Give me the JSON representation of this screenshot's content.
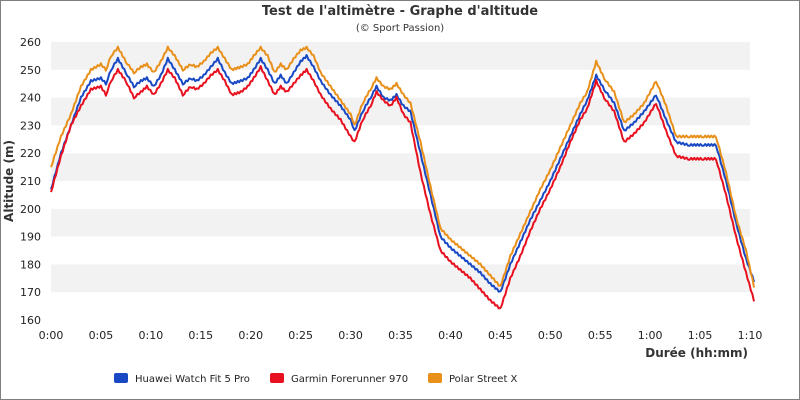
{
  "chart_data": {
    "type": "line",
    "title": "Test de l'altimètre - Graphe d'altitude",
    "subtitle": "(© Sport Passion)",
    "xlabel": "Durée (hh:mm)",
    "ylabel": "Altitude (m)",
    "xlim": [
      0,
      70
    ],
    "ylim": [
      160,
      260
    ],
    "x_ticks": [
      "0:00",
      "0:05",
      "0:10",
      "0:15",
      "0:20",
      "0:25",
      "0:30",
      "0:35",
      "0:40",
      "0:45",
      "0:50",
      "0:55",
      "1:00",
      "1:05",
      "1:10"
    ],
    "y_ticks": [
      160,
      170,
      180,
      190,
      200,
      210,
      220,
      230,
      240,
      250,
      260
    ],
    "grid": "horizontal-bands",
    "legend_position": "bottom",
    "series": [
      {
        "name": "Huawei Watch Fit 5 Pro",
        "color": "#1848c4",
        "points": [
          [
            0,
            207
          ],
          [
            1,
            220
          ],
          [
            2,
            230
          ],
          [
            3,
            240
          ],
          [
            4,
            246
          ],
          [
            5,
            247
          ],
          [
            5.5,
            245
          ],
          [
            6,
            250
          ],
          [
            6.7,
            254
          ],
          [
            7.5,
            249
          ],
          [
            8.3,
            244
          ],
          [
            9,
            246
          ],
          [
            9.6,
            247
          ],
          [
            10.3,
            244
          ],
          [
            11,
            248
          ],
          [
            11.7,
            254
          ],
          [
            12.4,
            250
          ],
          [
            13.2,
            245
          ],
          [
            14,
            247
          ],
          [
            14.6,
            246
          ],
          [
            15.3,
            248
          ],
          [
            16,
            251
          ],
          [
            16.7,
            254
          ],
          [
            17.4,
            249
          ],
          [
            18.1,
            245
          ],
          [
            19,
            246
          ],
          [
            19.7,
            247
          ],
          [
            20.3,
            250
          ],
          [
            21,
            254
          ],
          [
            21.7,
            250
          ],
          [
            22.4,
            245
          ],
          [
            23,
            248
          ],
          [
            23.6,
            245
          ],
          [
            24.3,
            249
          ],
          [
            25,
            253
          ],
          [
            25.6,
            255
          ],
          [
            26.3,
            251
          ],
          [
            27,
            246
          ],
          [
            28,
            241
          ],
          [
            29,
            237
          ],
          [
            30,
            232
          ],
          [
            30.4,
            228
          ],
          [
            31.2,
            235
          ],
          [
            32,
            240
          ],
          [
            32.6,
            244
          ],
          [
            33.3,
            240
          ],
          [
            34,
            239
          ],
          [
            34.6,
            241
          ],
          [
            35.3,
            237
          ],
          [
            36,
            235
          ],
          [
            37,
            220
          ],
          [
            38,
            205
          ],
          [
            39,
            190
          ],
          [
            40,
            186
          ],
          [
            41,
            183
          ],
          [
            42,
            180
          ],
          [
            43,
            177
          ],
          [
            44,
            173
          ],
          [
            45,
            170
          ],
          [
            46,
            180
          ],
          [
            47,
            188
          ],
          [
            48,
            196
          ],
          [
            49,
            203
          ],
          [
            50,
            210
          ],
          [
            51,
            218
          ],
          [
            52,
            226
          ],
          [
            53,
            234
          ],
          [
            53.7,
            239
          ],
          [
            54.6,
            248
          ],
          [
            55.4,
            243
          ],
          [
            56.4,
            238
          ],
          [
            57.4,
            228
          ],
          [
            58.4,
            231
          ],
          [
            59.4,
            235
          ],
          [
            60.6,
            241
          ],
          [
            61.6,
            232
          ],
          [
            62.6,
            224
          ],
          [
            63.8,
            223
          ],
          [
            65.2,
            223
          ],
          [
            66.6,
            223
          ],
          [
            67.6,
            210
          ],
          [
            68.6,
            195
          ],
          [
            69.6,
            182
          ],
          [
            70.4,
            174
          ]
        ]
      },
      {
        "name": "Garmin Forerunner 970",
        "color": "#e8101e",
        "points": [
          [
            0,
            206
          ],
          [
            1,
            219
          ],
          [
            2,
            230
          ],
          [
            3,
            237
          ],
          [
            4,
            243
          ],
          [
            5,
            244
          ],
          [
            5.5,
            241
          ],
          [
            6,
            246
          ],
          [
            6.7,
            250
          ],
          [
            7.5,
            246
          ],
          [
            8.3,
            240
          ],
          [
            9,
            242
          ],
          [
            9.6,
            244
          ],
          [
            10.3,
            241
          ],
          [
            11,
            245
          ],
          [
            11.7,
            250
          ],
          [
            12.4,
            247
          ],
          [
            13.2,
            241
          ],
          [
            14,
            244
          ],
          [
            14.6,
            243
          ],
          [
            15.3,
            245
          ],
          [
            16,
            248
          ],
          [
            16.7,
            250
          ],
          [
            17.4,
            246
          ],
          [
            18.1,
            241
          ],
          [
            19,
            242
          ],
          [
            19.7,
            244
          ],
          [
            20.3,
            247
          ],
          [
            21,
            251
          ],
          [
            21.7,
            246
          ],
          [
            22.4,
            241
          ],
          [
            23,
            244
          ],
          [
            23.6,
            242
          ],
          [
            24.3,
            245
          ],
          [
            25,
            248
          ],
          [
            25.6,
            250
          ],
          [
            26.3,
            246
          ],
          [
            27,
            241
          ],
          [
            28,
            236
          ],
          [
            29,
            232
          ],
          [
            30,
            226
          ],
          [
            30.4,
            224
          ],
          [
            31.2,
            232
          ],
          [
            32,
            237
          ],
          [
            32.6,
            242
          ],
          [
            33.3,
            239
          ],
          [
            34,
            237
          ],
          [
            34.6,
            240
          ],
          [
            35.3,
            234
          ],
          [
            36,
            231
          ],
          [
            37,
            213
          ],
          [
            38,
            198
          ],
          [
            39,
            185
          ],
          [
            40,
            181
          ],
          [
            41,
            178
          ],
          [
            42,
            175
          ],
          [
            43,
            171
          ],
          [
            44,
            167
          ],
          [
            45,
            164
          ],
          [
            46,
            175
          ],
          [
            47,
            183
          ],
          [
            48,
            192
          ],
          [
            49,
            200
          ],
          [
            50,
            207
          ],
          [
            51,
            215
          ],
          [
            52,
            224
          ],
          [
            53,
            232
          ],
          [
            53.7,
            236
          ],
          [
            54.6,
            246
          ],
          [
            55.4,
            240
          ],
          [
            56.4,
            235
          ],
          [
            57.4,
            224
          ],
          [
            58.4,
            227
          ],
          [
            59.4,
            231
          ],
          [
            60.6,
            238
          ],
          [
            61.6,
            228
          ],
          [
            62.6,
            219
          ],
          [
            63.8,
            218
          ],
          [
            65.2,
            218
          ],
          [
            66.6,
            218
          ],
          [
            67.6,
            205
          ],
          [
            68.6,
            190
          ],
          [
            69.6,
            177
          ],
          [
            70.4,
            167
          ]
        ]
      },
      {
        "name": "Polar Street X",
        "color": "#e8901a",
        "points": [
          [
            0,
            215
          ],
          [
            1,
            226
          ],
          [
            2,
            234
          ],
          [
            3,
            244
          ],
          [
            4,
            250
          ],
          [
            5,
            252
          ],
          [
            5.5,
            250
          ],
          [
            6,
            255
          ],
          [
            6.7,
            258
          ],
          [
            7.5,
            253
          ],
          [
            8.3,
            249
          ],
          [
            9,
            251
          ],
          [
            9.6,
            252
          ],
          [
            10.3,
            249
          ],
          [
            11,
            253
          ],
          [
            11.7,
            258
          ],
          [
            12.4,
            255
          ],
          [
            13.2,
            250
          ],
          [
            14,
            252
          ],
          [
            14.6,
            251
          ],
          [
            15.3,
            253
          ],
          [
            16,
            256
          ],
          [
            16.7,
            258
          ],
          [
            17.4,
            254
          ],
          [
            18.1,
            250
          ],
          [
            19,
            251
          ],
          [
            19.7,
            252
          ],
          [
            20.3,
            255
          ],
          [
            21,
            258
          ],
          [
            21.7,
            255
          ],
          [
            22.4,
            249
          ],
          [
            23,
            252
          ],
          [
            23.6,
            250
          ],
          [
            24.3,
            254
          ],
          [
            25,
            257
          ],
          [
            25.6,
            258
          ],
          [
            26.3,
            255
          ],
          [
            27,
            249
          ],
          [
            28,
            244
          ],
          [
            29,
            239
          ],
          [
            30,
            234
          ],
          [
            30.4,
            230
          ],
          [
            31.2,
            238
          ],
          [
            32,
            243
          ],
          [
            32.6,
            247
          ],
          [
            33.3,
            244
          ],
          [
            34,
            243
          ],
          [
            34.6,
            245
          ],
          [
            35.3,
            241
          ],
          [
            36,
            238
          ],
          [
            37,
            224
          ],
          [
            38,
            208
          ],
          [
            39,
            193
          ],
          [
            40,
            189
          ],
          [
            41,
            186
          ],
          [
            42,
            183
          ],
          [
            43,
            180
          ],
          [
            44,
            176
          ],
          [
            45,
            172
          ],
          [
            46,
            183
          ],
          [
            47,
            191
          ],
          [
            48,
            199
          ],
          [
            49,
            207
          ],
          [
            50,
            214
          ],
          [
            51,
            222
          ],
          [
            52,
            230
          ],
          [
            53,
            238
          ],
          [
            53.7,
            242
          ],
          [
            54.6,
            253
          ],
          [
            55.4,
            247
          ],
          [
            56.4,
            242
          ],
          [
            57.4,
            231
          ],
          [
            58.4,
            234
          ],
          [
            59.4,
            238
          ],
          [
            60.6,
            246
          ],
          [
            61.6,
            237
          ],
          [
            62.6,
            226
          ],
          [
            63.8,
            226
          ],
          [
            65.2,
            226
          ],
          [
            66.6,
            226
          ],
          [
            67.6,
            213
          ],
          [
            68.6,
            197
          ],
          [
            69.6,
            185
          ],
          [
            70.4,
            172
          ]
        ]
      }
    ]
  }
}
